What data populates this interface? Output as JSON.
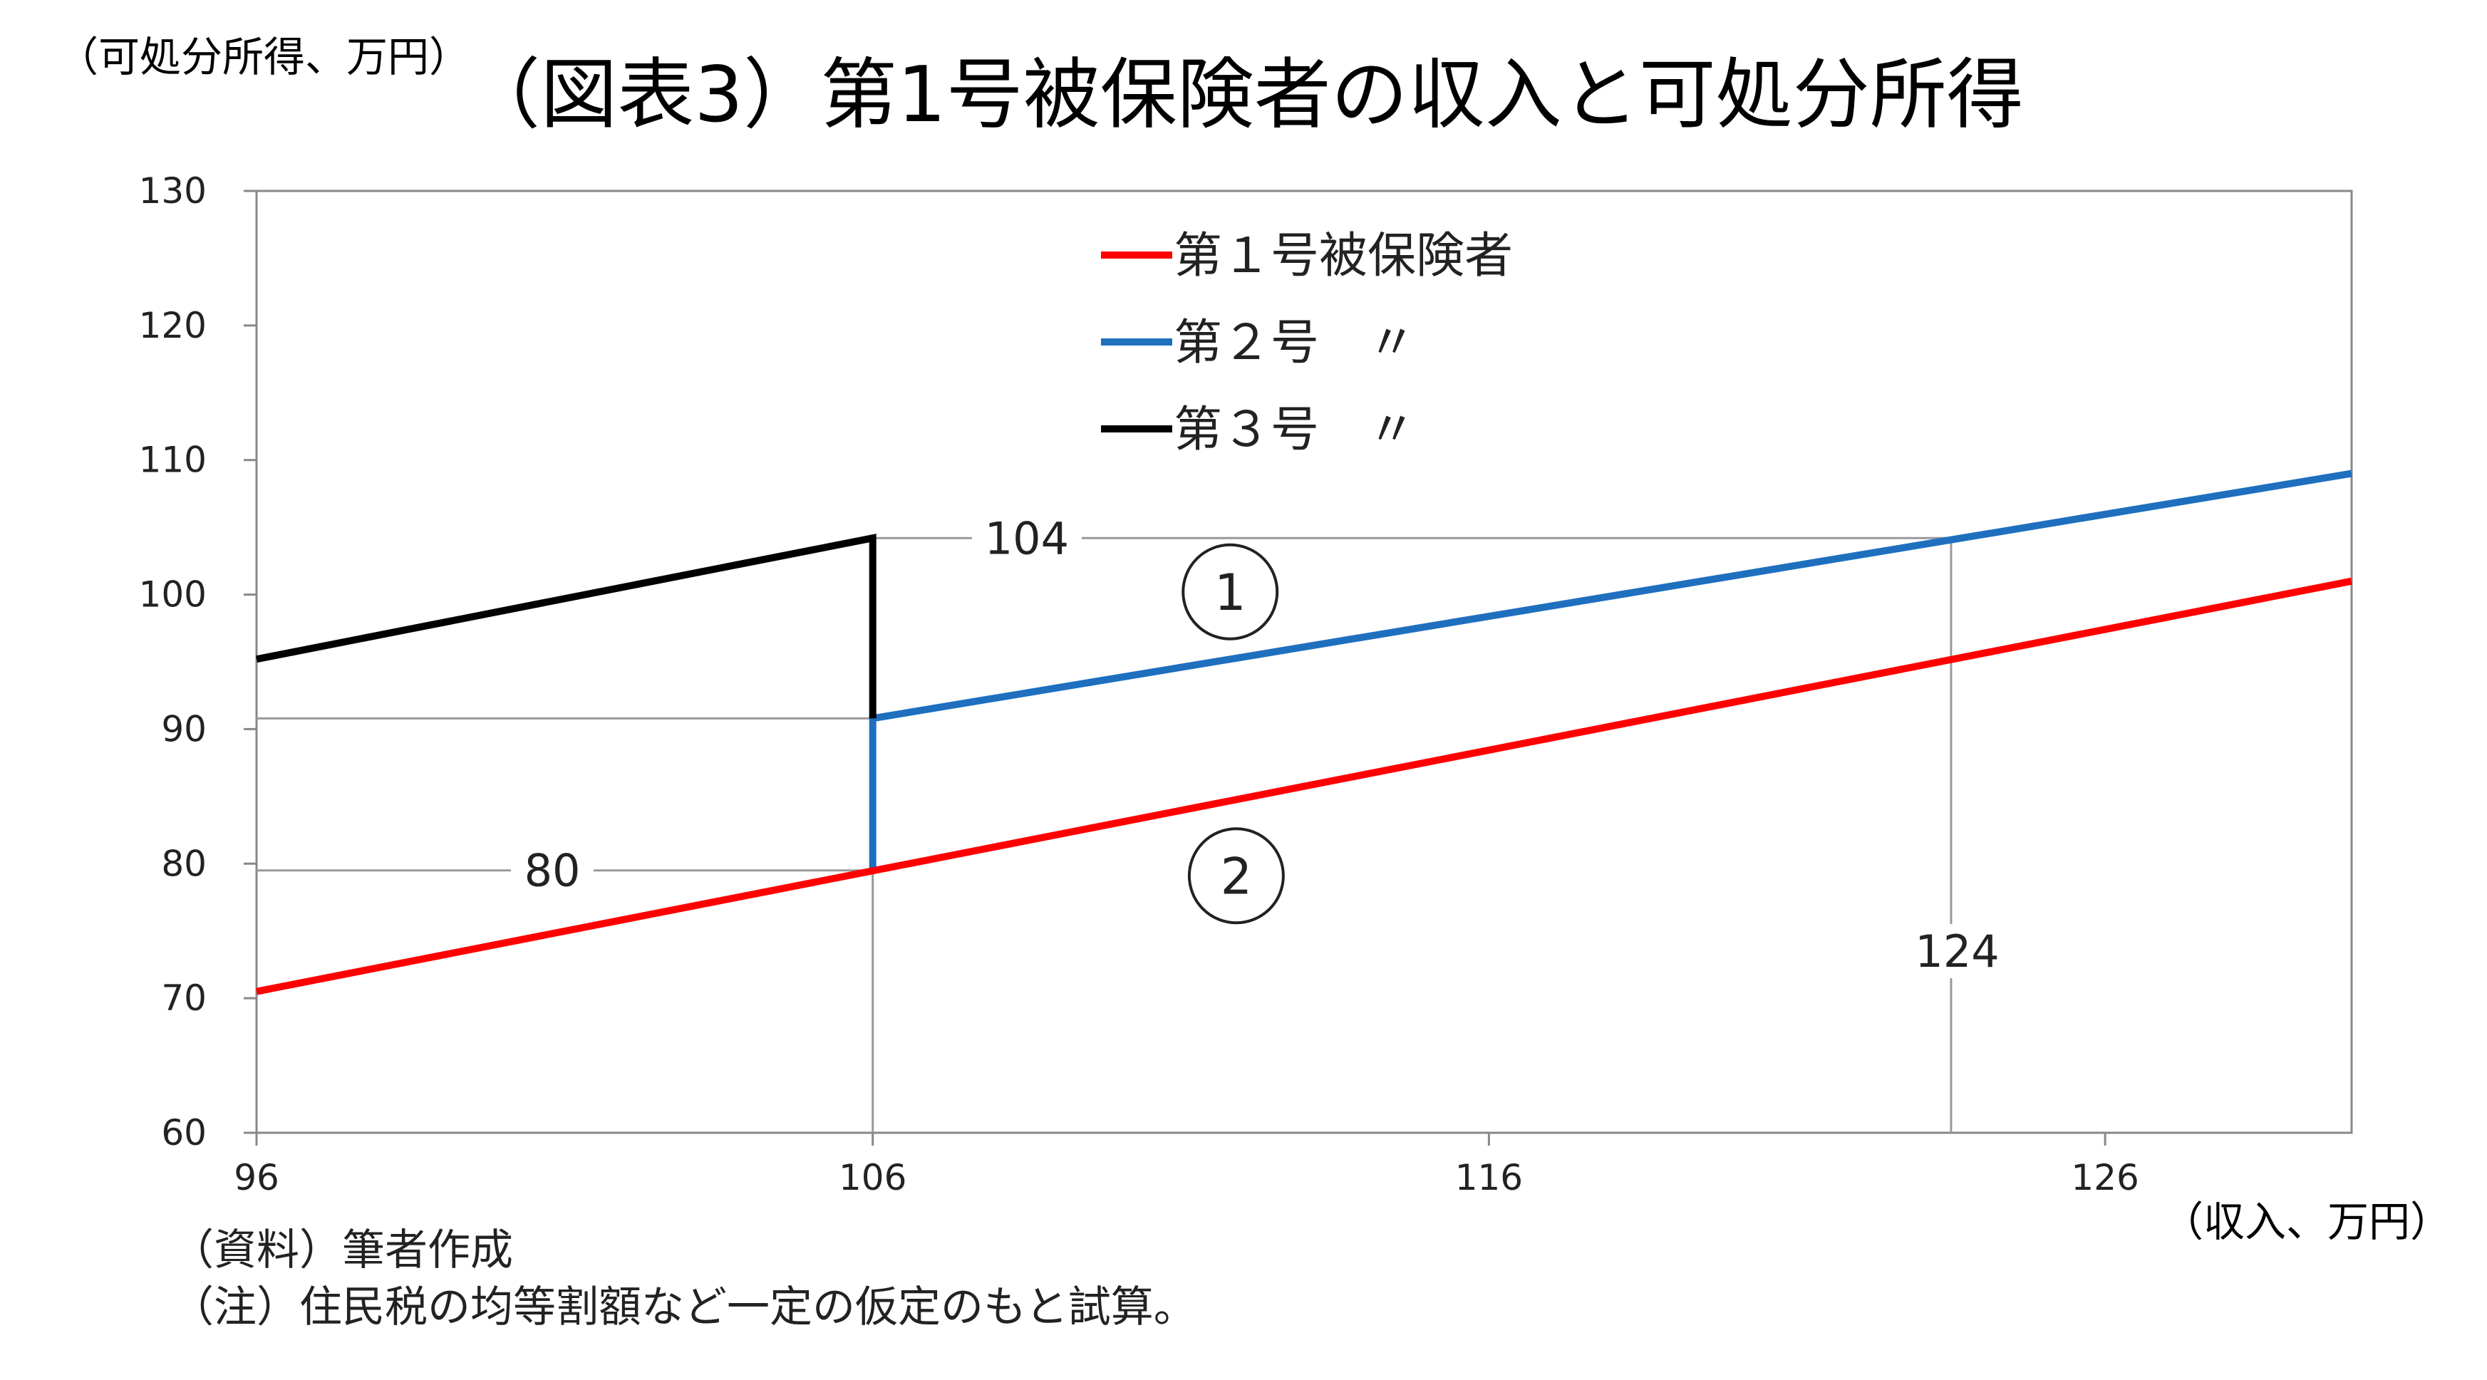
{
  "chart_data": {
    "type": "line",
    "title": "（図表3）第1号被保険者の収入と可処分所得",
    "ylabel": "（可処分所得、万円）",
    "xlabel": "（収入、万円）",
    "xlim": [
      96,
      130
    ],
    "ylim": [
      60,
      130
    ],
    "x_ticks": [
      "96",
      "106",
      "116",
      "126"
    ],
    "x_tick_values": [
      96,
      106,
      116,
      126
    ],
    "y_ticks": [
      "60",
      "70",
      "80",
      "90",
      "100",
      "110",
      "120",
      "130"
    ],
    "y_tick_values": [
      60,
      70,
      80,
      90,
      100,
      110,
      120,
      130
    ],
    "legend_position": "top-center",
    "series": [
      {
        "name": "第１号被保険者",
        "legend_label": "第１号被保険者",
        "color": "#ff0000",
        "points": [
          [
            96,
            70.5
          ],
          [
            130,
            101
          ]
        ]
      },
      {
        "name": "第２号　〃",
        "legend_label": "第２号　〃",
        "color": "#1f6fbf",
        "points": [
          [
            106,
            79.5
          ],
          [
            106,
            90.8
          ],
          [
            130,
            109
          ]
        ]
      },
      {
        "name": "第３号　〃",
        "legend_label": "第３号　〃",
        "color": "#000000",
        "points": [
          [
            96,
            95.2
          ],
          [
            106,
            104.2
          ],
          [
            106,
            90.8
          ]
        ]
      }
    ],
    "reference_lines": {
      "color": "#999999",
      "horizontal": [
        {
          "y": 104.2,
          "x_from": 106,
          "x_to": 123.5
        },
        {
          "y": 90.8,
          "x_from": 96,
          "x_to": 106
        },
        {
          "y": 79.5,
          "x_from": 96,
          "x_to": 106
        }
      ],
      "vertical": [
        {
          "x": 106,
          "y_from": 60,
          "y_to": 79.5
        },
        {
          "x": 123.5,
          "y_from": 60,
          "y_to": 104.2
        }
      ]
    },
    "annotations": [
      {
        "text": "104",
        "x": 108.5,
        "y": 104.2
      },
      {
        "text": "80",
        "x": 100.8,
        "y": 79.5
      },
      {
        "text": "124",
        "x": 123.6,
        "y": 73.5
      }
    ],
    "circle_labels": [
      {
        "text": "1",
        "x": 111.8,
        "y": 100.2
      },
      {
        "text": "2",
        "x": 111.9,
        "y": 79.1
      }
    ]
  },
  "notes": {
    "source": "（資料）筆者作成",
    "note": "（注）住民税の均等割額など一定の仮定のもと試算。"
  }
}
